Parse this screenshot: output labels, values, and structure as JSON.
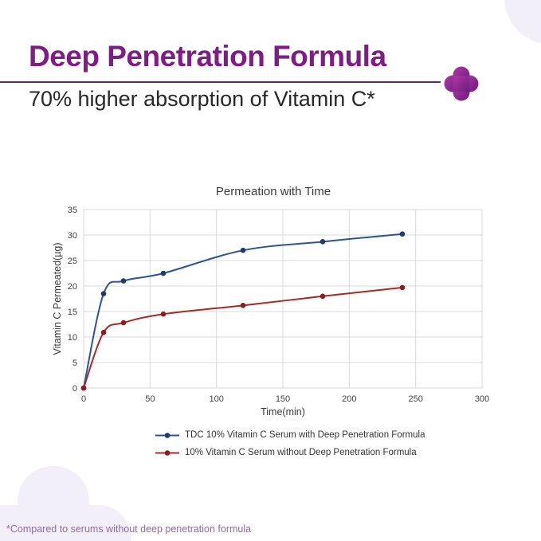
{
  "header": {
    "title": "Deep Penetration Formula",
    "subtitle": "70% higher absorption of Vitamin C*",
    "title_color": "#7e1d85",
    "underline_color": "#5d2a66",
    "plus_icon_colors": [
      "#b03aa6",
      "#6d1a7e"
    ]
  },
  "chart_data": {
    "type": "line",
    "title": "Permeation with Time",
    "xlabel": "Time(min)",
    "ylabel": "Vitamin C Permeated(µg)",
    "xlim": [
      0,
      300
    ],
    "ylim": [
      0,
      35
    ],
    "xtick_step": 50,
    "ytick_step": 5,
    "grid": true,
    "gridline_color": "#d9d9d9",
    "legend_position": "bottom",
    "series": [
      {
        "name": "TDC 10% Vitamin C Serum with Deep Penetration Formula",
        "color": "#2e5397",
        "marker_color": "#1f3a6e",
        "x": [
          0,
          15,
          30,
          60,
          120,
          180,
          240
        ],
        "y": [
          0,
          18.5,
          21,
          22.5,
          27,
          28.7,
          30.2
        ]
      },
      {
        "name": "10% Vitamin C Serum without Deep Penetration Formula",
        "color": "#a32c26",
        "marker_color": "#8e1c1c",
        "x": [
          0,
          15,
          30,
          60,
          120,
          180,
          240
        ],
        "y": [
          0,
          10.9,
          12.8,
          14.5,
          16.2,
          18,
          19.7
        ]
      }
    ]
  },
  "footnote": {
    "text": "*Compared to serums without deep penetration formula",
    "color": "#9168ab"
  },
  "decor": {
    "blob_color": "#f3eff8"
  }
}
